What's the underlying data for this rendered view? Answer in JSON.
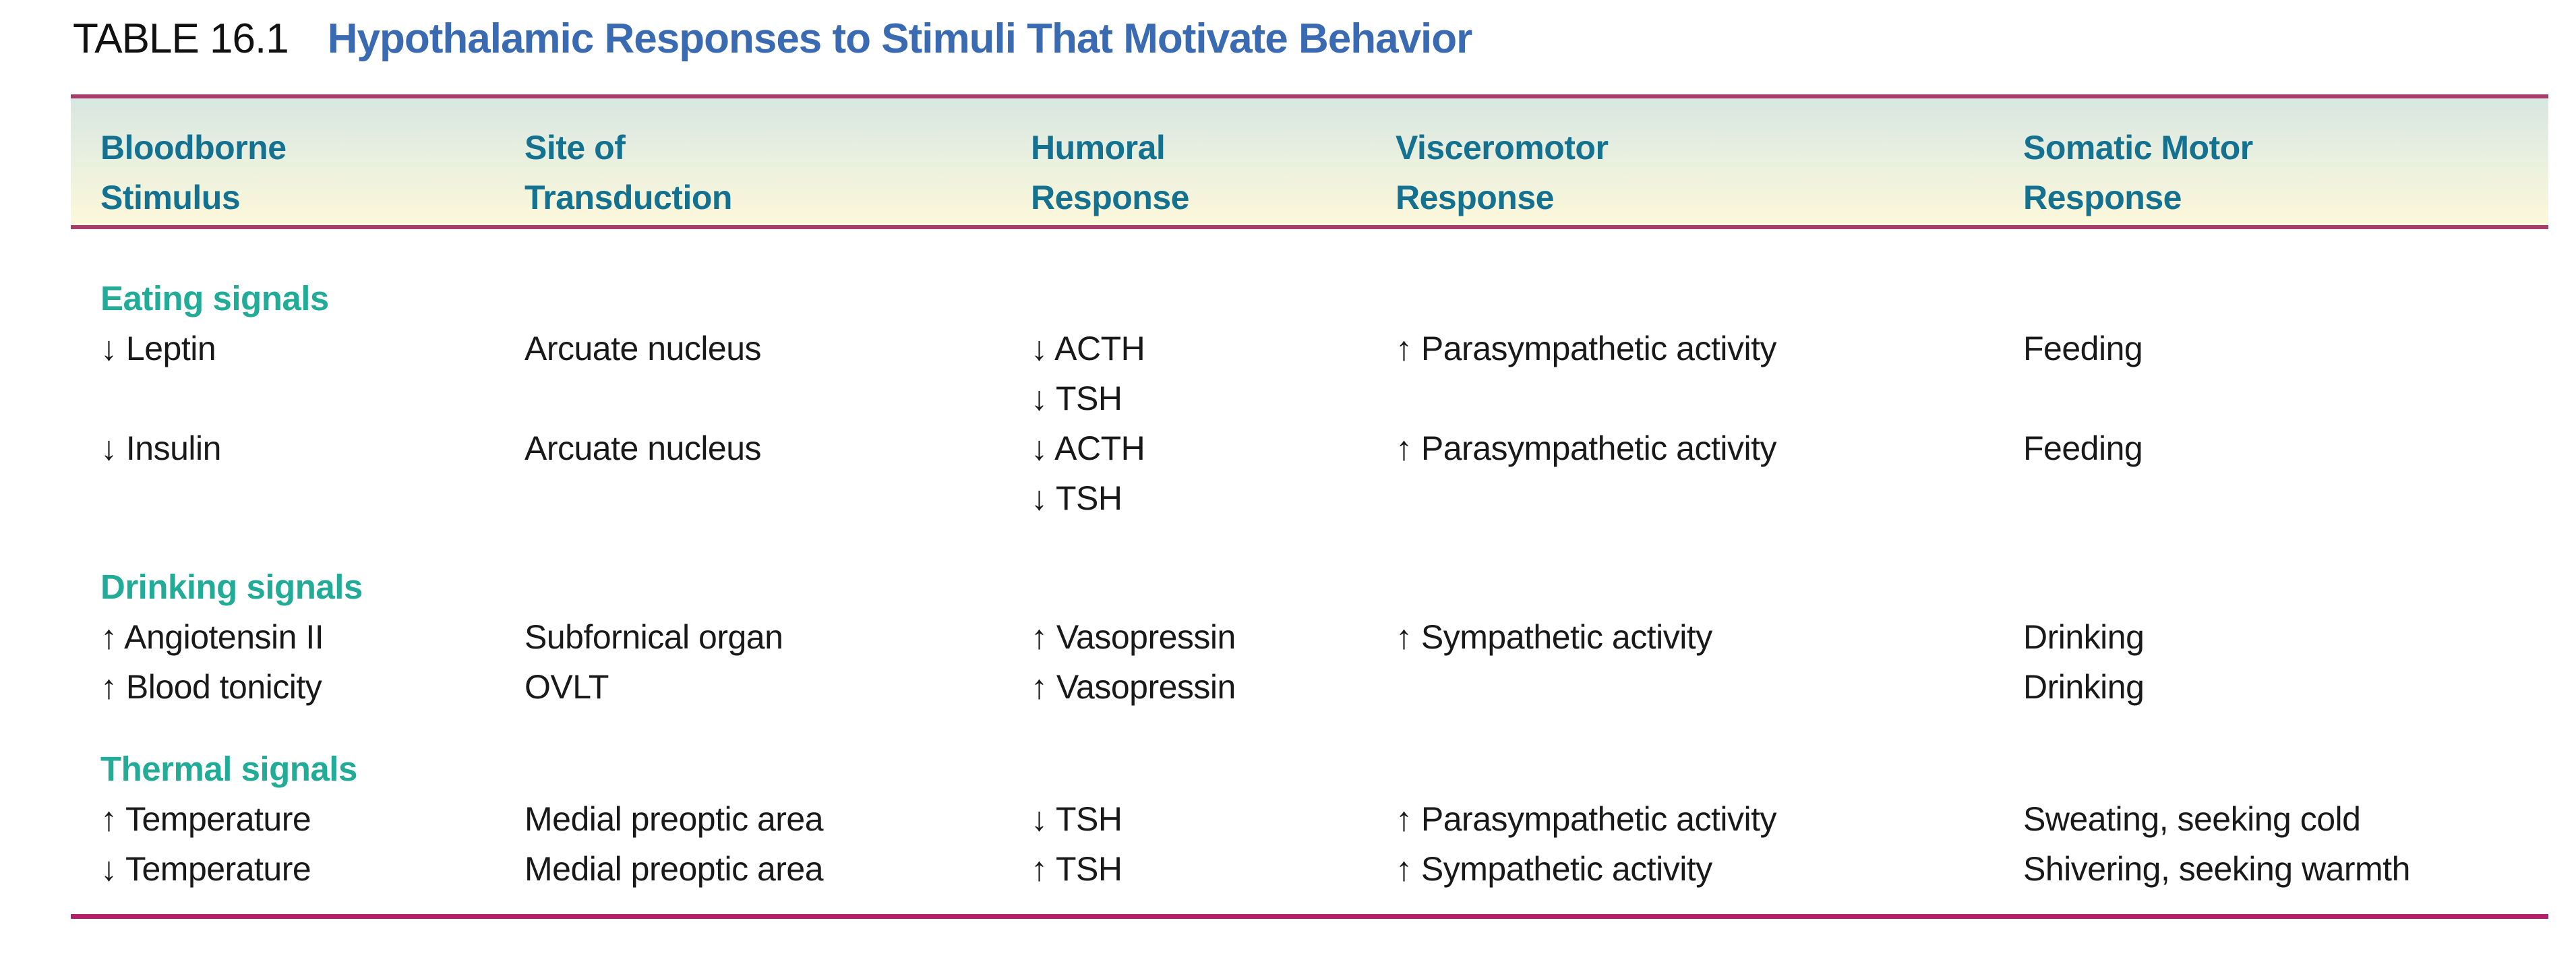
{
  "table": {
    "label": "TABLE 16.1",
    "title": "Hypothalamic Responses to Stimuli That Motivate Behavior",
    "columns": [
      {
        "line1": "Bloodborne",
        "line2": "Stimulus"
      },
      {
        "line1": "Site of",
        "line2": "Transduction"
      },
      {
        "line1": "Humoral",
        "line2": "Response"
      },
      {
        "line1": "Visceromotor",
        "line2": "Response"
      },
      {
        "line1": "Somatic Motor",
        "line2": "Response"
      }
    ],
    "sections": [
      {
        "heading": "Eating signals",
        "rows": [
          {
            "stimulus": "↓ Leptin",
            "site": "Arcuate nucleus",
            "humoral": [
              "↓ ACTH",
              "↓ TSH"
            ],
            "visceromotor": "↑ Parasympathetic activity",
            "somatic": "Feeding"
          },
          {
            "stimulus": "↓ Insulin",
            "site": "Arcuate nucleus",
            "humoral": [
              "↓ ACTH",
              "↓ TSH"
            ],
            "visceromotor": "↑ Parasympathetic activity",
            "somatic": "Feeding"
          }
        ]
      },
      {
        "heading": "Drinking signals",
        "rows": [
          {
            "stimulus": "↑ Angiotensin II",
            "site": "Subfornical organ",
            "humoral": [
              "↑ Vasopressin"
            ],
            "visceromotor": "↑ Sympathetic activity",
            "somatic": "Drinking"
          },
          {
            "stimulus": "↑ Blood tonicity",
            "site": "OVLT",
            "humoral": [
              "↑ Vasopressin"
            ],
            "visceromotor": "",
            "somatic": "Drinking"
          }
        ]
      },
      {
        "heading": "Thermal signals",
        "rows": [
          {
            "stimulus": "↑ Temperature",
            "site": "Medial preoptic area",
            "humoral": [
              "↓ TSH"
            ],
            "visceromotor": "↑ Parasympathetic activity",
            "somatic": "Sweating, seeking cold"
          },
          {
            "stimulus": "↓ Temperature",
            "site": "Medial preoptic area",
            "humoral": [
              "↑ TSH"
            ],
            "visceromotor": "↑ Sympathetic activity",
            "somatic": "Shivering, seeking warmth"
          }
        ]
      }
    ],
    "colors": {
      "title_blue": "#3a6ab1",
      "column_header_teal": "#14718f",
      "section_heading_teal": "#22ab97",
      "rule_magenta": "#a73c6b",
      "bottom_rule_magenta": "#b32069",
      "band_gradient_top": "#d8e7e2",
      "band_gradient_bottom": "#fcf8da",
      "body_text": "#191919"
    }
  }
}
